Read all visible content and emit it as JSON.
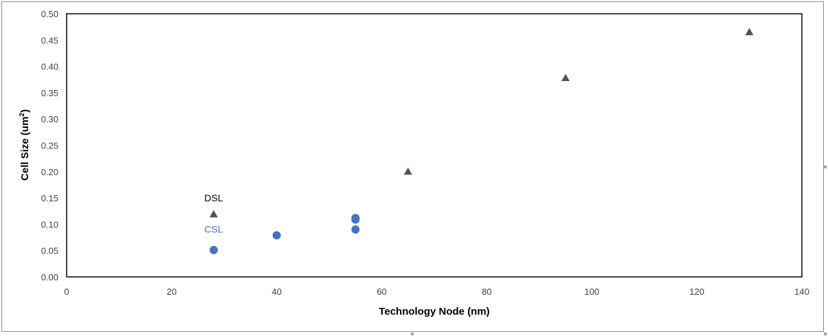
{
  "chart_data": {
    "type": "scatter",
    "title": "",
    "xlabel": "Technology Node (nm)",
    "ylabel_main": "Cell Size (um",
    "ylabel_sup": "2",
    "ylabel_end": ")",
    "xlim": [
      0,
      140
    ],
    "ylim": [
      0,
      0.5
    ],
    "x_ticks": [
      0,
      20,
      40,
      60,
      80,
      100,
      120,
      140
    ],
    "y_ticks": [
      "0.00",
      "0.05",
      "0.10",
      "0.15",
      "0.20",
      "0.25",
      "0.30",
      "0.35",
      "0.40",
      "0.45",
      "0.50"
    ],
    "grid": false,
    "legend": "none",
    "series": [
      {
        "marker": "triangle",
        "color": "#44546a",
        "points": [
          {
            "x": 28,
            "y": 0.119
          },
          {
            "x": 65,
            "y": 0.2
          },
          {
            "x": 95,
            "y": 0.378
          },
          {
            "x": 130,
            "y": 0.465
          }
        ]
      },
      {
        "marker": "circle",
        "color": "#4472c4",
        "points": [
          {
            "x": 28,
            "y": 0.051
          },
          {
            "x": 40,
            "y": 0.079
          },
          {
            "x": 55,
            "y": 0.09
          },
          {
            "x": 55,
            "y": 0.109
          },
          {
            "x": 55,
            "y": 0.112
          }
        ]
      }
    ],
    "annotations": [
      {
        "text": "DSL",
        "color": "#000000",
        "x": 28,
        "y": 0.15
      },
      {
        "text": "CSL",
        "color": "#4472c4",
        "x": 28,
        "y": 0.091
      }
    ]
  }
}
